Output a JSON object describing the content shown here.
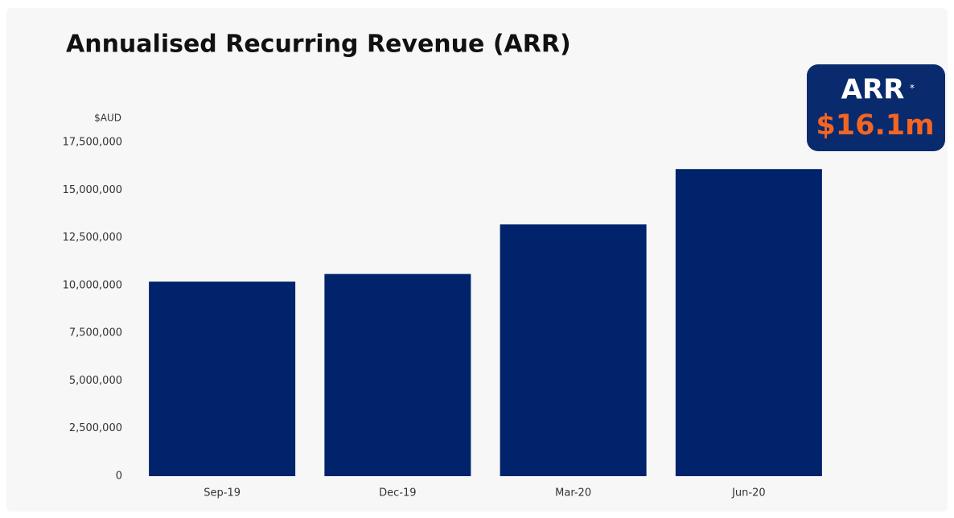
{
  "chart_data": {
    "type": "bar",
    "title": "Annualised Recurring Revenue (ARR)",
    "y_label": "$AUD",
    "categories": [
      "Sep-19",
      "Dec-19",
      "Mar-20",
      "Jun-20"
    ],
    "values": [
      10200000,
      10600000,
      13200000,
      16100000
    ],
    "color": "#00236b",
    "ylim": [
      0,
      17500000
    ],
    "yticks": [
      0,
      {
        "value": 2500000,
        "label": "2,500,000"
      },
      {
        "value": 5000000,
        "label": "5,000,000"
      },
      {
        "value": 7500000,
        "label": "7,500,000"
      },
      {
        "value": 10000000,
        "label": "10,000,000"
      },
      {
        "value": 12500000,
        "label": "12,500,000"
      },
      {
        "value": 15000000,
        "label": "15,000,000"
      },
      {
        "value": 17500000,
        "label": "17,500,000"
      }
    ],
    "grid": false,
    "annotation": {
      "label": "ARR",
      "marker": "*",
      "value": "$16.1m"
    }
  }
}
